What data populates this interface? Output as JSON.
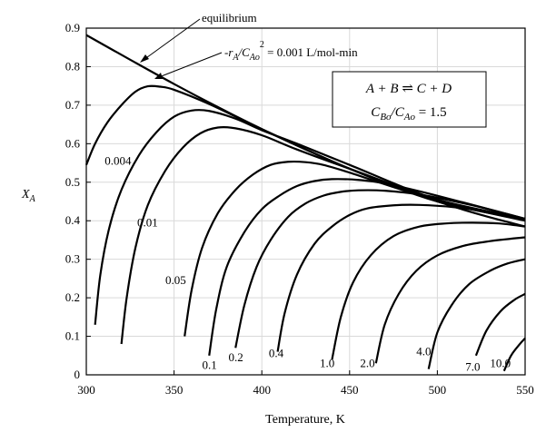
{
  "chart_data": {
    "type": "line",
    "xlabel": "Temperature, K",
    "ylabel": "X",
    "ylabel_sub": "A",
    "xlim": [
      300,
      550
    ],
    "ylim": [
      0,
      0.9
    ],
    "xticks": [
      300,
      350,
      400,
      450,
      500,
      550
    ],
    "yticks": [
      0,
      0.1,
      0.2,
      0.3,
      0.4,
      0.5,
      0.6,
      0.7,
      0.8,
      0.9
    ],
    "grid": true,
    "equilibrium": {
      "label": "equilibrium",
      "x": [
        300,
        325,
        350,
        375,
        400,
        425,
        450,
        475,
        500,
        525,
        550
      ],
      "y": [
        0.882,
        0.818,
        0.755,
        0.695,
        0.638,
        0.585,
        0.535,
        0.49,
        0.45,
        0.415,
        0.385
      ]
    },
    "rate_annotation": {
      "prefix": "-r",
      "prefix_sub": "A",
      "slash_c": "/C",
      "c_sub": "Ao",
      "exponent": "2",
      "value": " = 0.001 L/mol-min"
    },
    "reaction_box": {
      "line1": "A + B ⇌ C + D",
      "line2_c1": "C",
      "line2_c1_sub": "Bo",
      "line2_mid": "/C",
      "line2_c2_sub": "Ao",
      "line2_value": " = 1.5"
    },
    "series": [
      {
        "name": "0.001",
        "x": [
          300,
          305,
          312,
          320,
          328,
          335,
          342,
          350,
          370,
          400,
          450,
          500,
          550
        ],
        "y": [
          0.545,
          0.6,
          0.655,
          0.7,
          0.735,
          0.749,
          0.748,
          0.74,
          0.703,
          0.638,
          0.535,
          0.45,
          0.403
        ]
      },
      {
        "name": "0.004",
        "x": [
          305,
          308,
          313,
          320,
          330,
          340,
          350,
          360,
          370,
          385,
          400,
          420,
          450,
          500,
          550
        ],
        "y": [
          0.13,
          0.26,
          0.38,
          0.48,
          0.57,
          0.63,
          0.67,
          0.686,
          0.685,
          0.665,
          0.635,
          0.6,
          0.545,
          0.455,
          0.405
        ]
      },
      {
        "name": "0.01",
        "x": [
          320,
          323,
          328,
          335,
          345,
          355,
          365,
          375,
          385,
          400,
          420,
          450,
          500,
          550
        ],
        "y": [
          0.08,
          0.2,
          0.33,
          0.44,
          0.53,
          0.59,
          0.627,
          0.642,
          0.64,
          0.622,
          0.585,
          0.535,
          0.455,
          0.405
        ]
      },
      {
        "name": "0.05",
        "x": [
          356,
          360,
          366,
          375,
          385,
          395,
          405,
          415,
          425,
          435,
          450,
          480,
          510,
          550
        ],
        "y": [
          0.1,
          0.22,
          0.33,
          0.42,
          0.48,
          0.52,
          0.545,
          0.553,
          0.552,
          0.545,
          0.525,
          0.48,
          0.44,
          0.4
        ]
      },
      {
        "name": "0.1",
        "x": [
          370,
          374,
          380,
          390,
          400,
          410,
          420,
          430,
          440,
          455,
          470,
          500,
          550
        ],
        "y": [
          0.05,
          0.17,
          0.28,
          0.37,
          0.43,
          0.465,
          0.49,
          0.503,
          0.508,
          0.506,
          0.497,
          0.465,
          0.405
        ]
      },
      {
        "name": "0.2",
        "x": [
          385,
          390,
          397,
          405,
          415,
          425,
          435,
          445,
          455,
          470,
          490,
          520,
          550
        ],
        "y": [
          0.07,
          0.18,
          0.28,
          0.35,
          0.41,
          0.445,
          0.465,
          0.475,
          0.479,
          0.478,
          0.468,
          0.44,
          0.405
        ]
      },
      {
        "name": "0.4",
        "x": [
          409,
          413,
          420,
          430,
          440,
          450,
          460,
          475,
          490,
          510,
          530,
          550
        ],
        "y": [
          0.06,
          0.16,
          0.26,
          0.34,
          0.385,
          0.415,
          0.432,
          0.44,
          0.441,
          0.435,
          0.422,
          0.403
        ]
      },
      {
        "name": "1.0",
        "x": [
          440,
          445,
          452,
          462,
          475,
          490,
          505,
          520,
          535,
          550
        ],
        "y": [
          0.04,
          0.15,
          0.24,
          0.31,
          0.36,
          0.385,
          0.393,
          0.395,
          0.393,
          0.385
        ]
      },
      {
        "name": "2.0",
        "x": [
          465,
          470,
          478,
          488,
          500,
          515,
          530,
          550
        ],
        "y": [
          0.03,
          0.13,
          0.21,
          0.27,
          0.31,
          0.335,
          0.347,
          0.357
        ]
      },
      {
        "name": "4.0",
        "x": [
          495,
          500,
          508,
          518,
          530,
          540,
          550
        ],
        "y": [
          0.015,
          0.11,
          0.18,
          0.235,
          0.27,
          0.289,
          0.3
        ]
      },
      {
        "name": "7.0",
        "x": [
          522,
          528,
          536,
          544,
          550
        ],
        "y": [
          0.05,
          0.115,
          0.165,
          0.195,
          0.21
        ]
      },
      {
        "name": "10.0",
        "x": [
          538,
          542,
          547,
          550
        ],
        "y": [
          0.01,
          0.05,
          0.08,
          0.095
        ]
      }
    ],
    "curve_labels": [
      {
        "text": "0.004",
        "x": 310.5,
        "y": 0.555
      },
      {
        "text": "0.01",
        "x": 329,
        "y": 0.395
      },
      {
        "text": "0.05",
        "x": 345,
        "y": 0.245
      },
      {
        "text": "0.1",
        "x": 366,
        "y": 0.025
      },
      {
        "text": "0.2",
        "x": 381,
        "y": 0.045
      },
      {
        "text": "0.4",
        "x": 404,
        "y": 0.055
      },
      {
        "text": "1.0",
        "x": 433,
        "y": 0.03
      },
      {
        "text": "2.0",
        "x": 456,
        "y": 0.03
      },
      {
        "text": "4.0",
        "x": 488,
        "y": 0.06
      },
      {
        "text": "7.0",
        "x": 516,
        "y": 0.02
      },
      {
        "text": "10.0",
        "x": 530,
        "y": 0.03
      }
    ]
  }
}
